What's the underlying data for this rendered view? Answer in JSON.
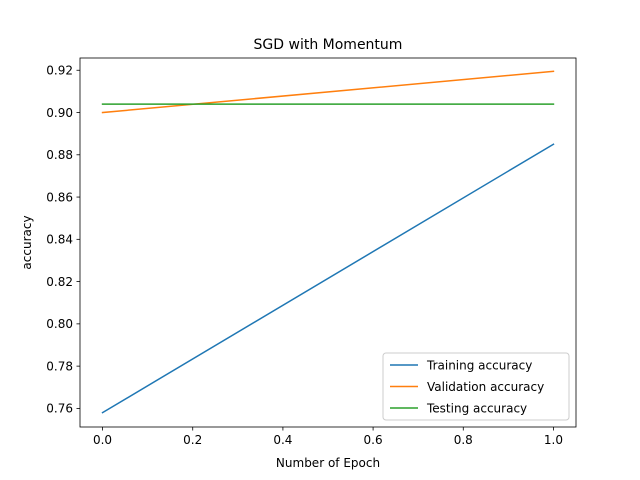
{
  "chart_data": {
    "type": "line",
    "title": "SGD with Momentum",
    "xlabel": "Number of Epoch",
    "ylabel": "accuracy",
    "xlim": [
      -0.05,
      1.05
    ],
    "ylim": [
      0.7512,
      0.9258
    ],
    "xticks": [
      "0.0",
      "0.2",
      "0.4",
      "0.6",
      "0.8",
      "1.0"
    ],
    "yticks": [
      "0.76",
      "0.78",
      "0.80",
      "0.82",
      "0.84",
      "0.86",
      "0.88",
      "0.90",
      "0.92"
    ],
    "grid": false,
    "legend_position": "lower-right",
    "series": [
      {
        "name": "Training accuracy",
        "color": "#1f77b4",
        "x": [
          0,
          1
        ],
        "y": [
          0.758,
          0.885
        ]
      },
      {
        "name": "Validation accuracy",
        "color": "#ff7f0e",
        "x": [
          0,
          1
        ],
        "y": [
          0.9,
          0.9195
        ]
      },
      {
        "name": "Testing accuracy",
        "color": "#2ca02c",
        "x": [
          0,
          1
        ],
        "y": [
          0.904,
          0.904
        ]
      }
    ]
  }
}
